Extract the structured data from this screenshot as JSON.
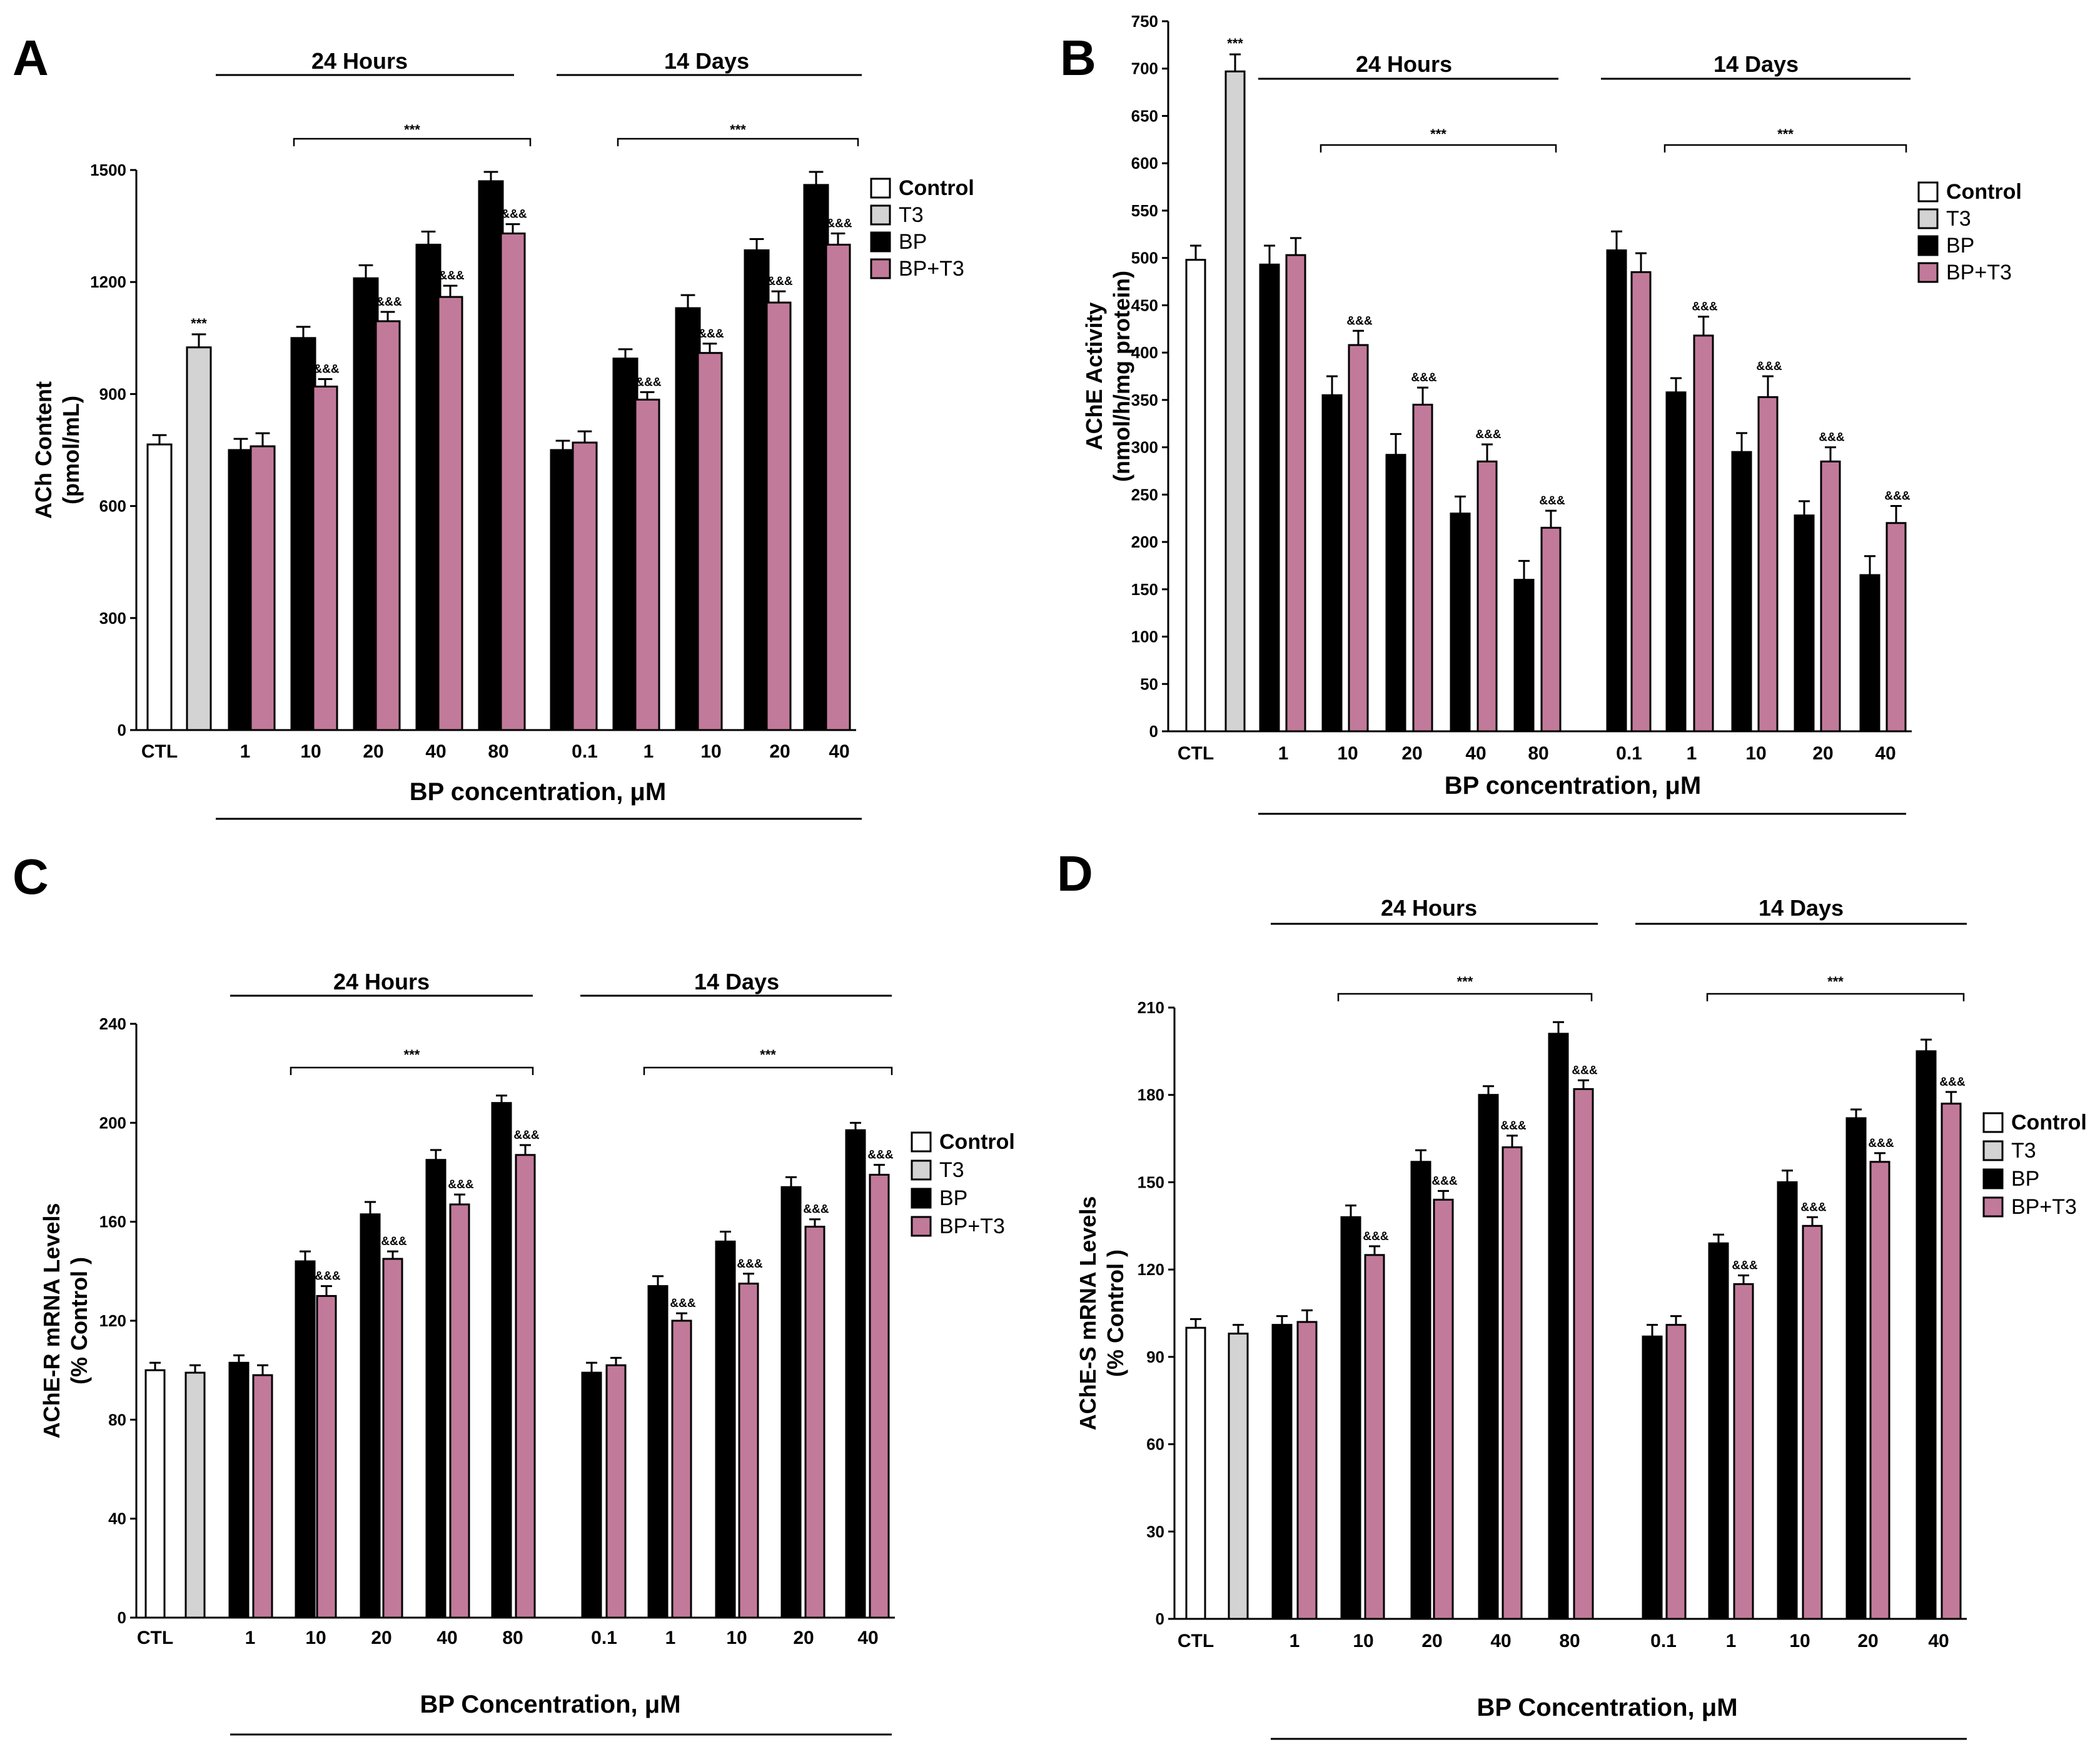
{
  "colors": {
    "Control": "#ffffff",
    "T3": "#d3d3d3",
    "BP": "#000000",
    "BP+T3": "#c27a9a"
  },
  "chart_data": [
    {
      "type": "bar",
      "panel": "A",
      "ylabel": [
        "ACh Content",
        "(pmol/mL)"
      ],
      "xlabel": "BP concentration, μM",
      "yticks": [
        0,
        300,
        600,
        900,
        1200,
        1500
      ],
      "ylim": [
        0,
        1500
      ],
      "legend": [
        "Control",
        "T3",
        "BP",
        "BP+T3"
      ],
      "groups": [
        "24 Hours",
        "14 Days"
      ],
      "categories": [
        "CTL",
        "1",
        "10",
        "20",
        "40",
        "80",
        "0.1",
        "1",
        "10",
        "20",
        "40"
      ],
      "bars": [
        {
          "series": "Control",
          "value": 765,
          "err": 25
        },
        {
          "series": "T3",
          "value": 1025,
          "err": 35,
          "mark": "***"
        },
        {
          "series": "BP",
          "value": 750,
          "err": 30
        },
        {
          "series": "BP+T3",
          "value": 760,
          "err": 35
        },
        {
          "series": "BP",
          "value": 1050,
          "err": 30
        },
        {
          "series": "BP+T3",
          "value": 920,
          "err": 20,
          "mark": "&&&"
        },
        {
          "series": "BP",
          "value": 1210,
          "err": 35
        },
        {
          "series": "BP+T3",
          "value": 1095,
          "err": 25,
          "mark": "&&&"
        },
        {
          "series": "BP",
          "value": 1300,
          "err": 35
        },
        {
          "series": "BP+T3",
          "value": 1160,
          "err": 30,
          "mark": "&&&"
        },
        {
          "series": "BP",
          "value": 1470,
          "err": 25
        },
        {
          "series": "BP+T3",
          "value": 1330,
          "err": 25,
          "mark": "&&&"
        },
        {
          "series": "BP",
          "value": 750,
          "err": 25
        },
        {
          "series": "BP+T3",
          "value": 770,
          "err": 30
        },
        {
          "series": "BP",
          "value": 995,
          "err": 25
        },
        {
          "series": "BP+T3",
          "value": 885,
          "err": 20,
          "mark": "&&&"
        },
        {
          "series": "BP",
          "value": 1130,
          "err": 35
        },
        {
          "series": "BP+T3",
          "value": 1010,
          "err": 25,
          "mark": "&&&"
        },
        {
          "series": "BP",
          "value": 1285,
          "err": 30
        },
        {
          "series": "BP+T3",
          "value": 1145,
          "err": 30,
          "mark": "&&&"
        },
        {
          "series": "BP",
          "value": 1460,
          "err": 35
        },
        {
          "series": "BP+T3",
          "value": 1300,
          "err": 30,
          "mark": "&&&"
        }
      ]
    },
    {
      "type": "bar",
      "panel": "B",
      "ylabel": [
        "AChE Activity",
        "(nmol/h/mg protein)"
      ],
      "xlabel": "BP concentration, μM",
      "yticks": [
        0,
        50,
        100,
        150,
        200,
        250,
        300,
        350,
        400,
        450,
        500,
        550,
        600,
        650,
        700,
        750
      ],
      "ylim": [
        0,
        750
      ],
      "legend": [
        "Control",
        "T3",
        "BP",
        "BP+T3"
      ],
      "groups": [
        "24 Hours",
        "14 Days"
      ],
      "categories": [
        "CTL",
        "1",
        "10",
        "20",
        "40",
        "80",
        "0.1",
        "1",
        "10",
        "20",
        "40"
      ],
      "bars": [
        {
          "series": "Control",
          "value": 498,
          "err": 15
        },
        {
          "series": "T3",
          "value": 697,
          "err": 18,
          "mark": "***"
        },
        {
          "series": "BP",
          "value": 493,
          "err": 20
        },
        {
          "series": "BP+T3",
          "value": 503,
          "err": 18
        },
        {
          "series": "BP",
          "value": 355,
          "err": 20
        },
        {
          "series": "BP+T3",
          "value": 408,
          "err": 15,
          "mark": "&&&"
        },
        {
          "series": "BP",
          "value": 292,
          "err": 22
        },
        {
          "series": "BP+T3",
          "value": 345,
          "err": 18,
          "mark": "&&&"
        },
        {
          "series": "BP",
          "value": 230,
          "err": 18
        },
        {
          "series": "BP+T3",
          "value": 285,
          "err": 18,
          "mark": "&&&"
        },
        {
          "series": "BP",
          "value": 160,
          "err": 20
        },
        {
          "series": "BP+T3",
          "value": 215,
          "err": 18,
          "mark": "&&&"
        },
        {
          "series": "BP",
          "value": 508,
          "err": 20
        },
        {
          "series": "BP+T3",
          "value": 485,
          "err": 20
        },
        {
          "series": "BP",
          "value": 358,
          "err": 15
        },
        {
          "series": "BP+T3",
          "value": 418,
          "err": 20,
          "mark": "&&&"
        },
        {
          "series": "BP",
          "value": 295,
          "err": 20
        },
        {
          "series": "BP+T3",
          "value": 353,
          "err": 22,
          "mark": "&&&"
        },
        {
          "series": "BP",
          "value": 228,
          "err": 15
        },
        {
          "series": "BP+T3",
          "value": 285,
          "err": 15,
          "mark": "&&&"
        },
        {
          "series": "BP",
          "value": 165,
          "err": 20
        },
        {
          "series": "BP+T3",
          "value": 220,
          "err": 18,
          "mark": "&&&"
        }
      ]
    },
    {
      "type": "bar",
      "panel": "C",
      "ylabel": [
        "AChE-R mRNA Levels",
        "(% Control )"
      ],
      "xlabel": "BP Concentration, μM",
      "yticks": [
        0,
        40,
        80,
        120,
        160,
        200,
        240
      ],
      "ylim": [
        0,
        240
      ],
      "legend": [
        "Control",
        "T3",
        "BP",
        "BP+T3"
      ],
      "groups": [
        "24 Hours",
        "14 Days"
      ],
      "categories": [
        "CTL",
        "1",
        "10",
        "20",
        "40",
        "80",
        "0.1",
        "1",
        "10",
        "20",
        "40"
      ],
      "bars": [
        {
          "series": "Control",
          "value": 100,
          "err": 3
        },
        {
          "series": "T3",
          "value": 99,
          "err": 3
        },
        {
          "series": "BP",
          "value": 103,
          "err": 3
        },
        {
          "series": "BP+T3",
          "value": 98,
          "err": 4
        },
        {
          "series": "BP",
          "value": 144,
          "err": 4
        },
        {
          "series": "BP+T3",
          "value": 130,
          "err": 4,
          "mark": "&&&"
        },
        {
          "series": "BP",
          "value": 163,
          "err": 5
        },
        {
          "series": "BP+T3",
          "value": 145,
          "err": 3,
          "mark": "&&&"
        },
        {
          "series": "BP",
          "value": 185,
          "err": 4
        },
        {
          "series": "BP+T3",
          "value": 167,
          "err": 4,
          "mark": "&&&"
        },
        {
          "series": "BP",
          "value": 208,
          "err": 3
        },
        {
          "series": "BP+T3",
          "value": 187,
          "err": 4,
          "mark": "&&&"
        },
        {
          "series": "BP",
          "value": 99,
          "err": 4
        },
        {
          "series": "BP+T3",
          "value": 102,
          "err": 3
        },
        {
          "series": "BP",
          "value": 134,
          "err": 4
        },
        {
          "series": "BP+T3",
          "value": 120,
          "err": 3,
          "mark": "&&&"
        },
        {
          "series": "BP",
          "value": 152,
          "err": 4
        },
        {
          "series": "BP+T3",
          "value": 135,
          "err": 4,
          "mark": "&&&"
        },
        {
          "series": "BP",
          "value": 174,
          "err": 4
        },
        {
          "series": "BP+T3",
          "value": 158,
          "err": 3,
          "mark": "&&&"
        },
        {
          "series": "BP",
          "value": 197,
          "err": 3
        },
        {
          "series": "BP+T3",
          "value": 179,
          "err": 4,
          "mark": "&&&"
        }
      ]
    },
    {
      "type": "bar",
      "panel": "D",
      "ylabel": [
        "AChE-S mRNA Levels",
        "(% Control )"
      ],
      "xlabel": "BP Concentration, μM",
      "yticks": [
        0,
        30,
        60,
        90,
        120,
        150,
        180,
        210
      ],
      "ylim": [
        0,
        210
      ],
      "legend": [
        "Control",
        "T3",
        "BP",
        "BP+T3"
      ],
      "groups": [
        "24 Hours",
        "14 Days"
      ],
      "categories": [
        "CTL",
        "1",
        "10",
        "20",
        "40",
        "80",
        "0.1",
        "1",
        "10",
        "20",
        "40"
      ],
      "bars": [
        {
          "series": "Control",
          "value": 100,
          "err": 3
        },
        {
          "series": "T3",
          "value": 98,
          "err": 3
        },
        {
          "series": "BP",
          "value": 101,
          "err": 3
        },
        {
          "series": "BP+T3",
          "value": 102,
          "err": 4
        },
        {
          "series": "BP",
          "value": 138,
          "err": 4
        },
        {
          "series": "BP+T3",
          "value": 125,
          "err": 3,
          "mark": "&&&"
        },
        {
          "series": "BP",
          "value": 157,
          "err": 4
        },
        {
          "series": "BP+T3",
          "value": 144,
          "err": 3,
          "mark": "&&&"
        },
        {
          "series": "BP",
          "value": 180,
          "err": 3
        },
        {
          "series": "BP+T3",
          "value": 162,
          "err": 4,
          "mark": "&&&"
        },
        {
          "series": "BP",
          "value": 201,
          "err": 4
        },
        {
          "series": "BP+T3",
          "value": 182,
          "err": 3,
          "mark": "&&&"
        },
        {
          "series": "BP",
          "value": 97,
          "err": 4
        },
        {
          "series": "BP+T3",
          "value": 101,
          "err": 3
        },
        {
          "series": "BP",
          "value": 129,
          "err": 3
        },
        {
          "series": "BP+T3",
          "value": 115,
          "err": 3,
          "mark": "&&&"
        },
        {
          "series": "BP",
          "value": 150,
          "err": 4
        },
        {
          "series": "BP+T3",
          "value": 135,
          "err": 3,
          "mark": "&&&"
        },
        {
          "series": "BP",
          "value": 172,
          "err": 3
        },
        {
          "series": "BP+T3",
          "value": 157,
          "err": 3,
          "mark": "&&&"
        },
        {
          "series": "BP",
          "value": 195,
          "err": 4
        },
        {
          "series": "BP+T3",
          "value": 177,
          "err": 4,
          "mark": "&&&"
        }
      ]
    }
  ],
  "annotations": {
    "group_significance": "***"
  }
}
